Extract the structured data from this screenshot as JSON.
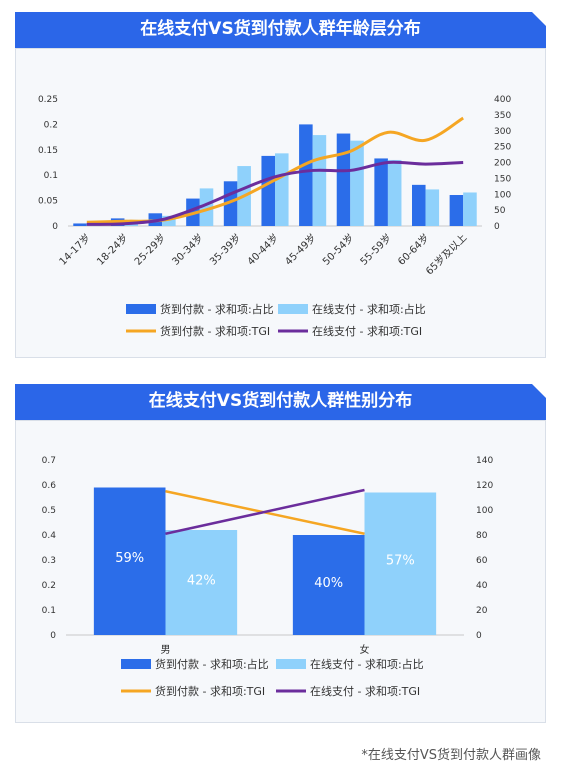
{
  "colors": {
    "banner_blue": "#2b66e8",
    "cod_bar": "#2b6de9",
    "online_bar": "#8fd1fb",
    "cod_line": "#f5a623",
    "online_line": "#6b2d9c"
  },
  "age_chart": {
    "title": "在线支付VS货到付款人群年龄层分布",
    "chart_data": {
      "type": "bar",
      "categories": [
        "14-17岁",
        "18-24岁",
        "25-29岁",
        "30-34岁",
        "35-39岁",
        "40-44岁",
        "45-49岁",
        "50-54岁",
        "55-59岁",
        "60-64岁",
        "65岁及以上"
      ],
      "series": [
        {
          "name": "货到付款 - 求和项:占比",
          "type": "bar",
          "axis": "left",
          "values": [
            0.005,
            0.015,
            0.025,
            0.054,
            0.088,
            0.138,
            0.2,
            0.182,
            0.133,
            0.081,
            0.061
          ]
        },
        {
          "name": "在线支付 - 求和项:占比",
          "type": "bar",
          "axis": "left",
          "values": [
            0.004,
            0.012,
            0.02,
            0.074,
            0.118,
            0.143,
            0.179,
            0.168,
            0.13,
            0.072,
            0.066
          ]
        },
        {
          "name": "货到付款 - 求和项:TGI",
          "type": "line",
          "axis": "right",
          "values": [
            12,
            15,
            18,
            45,
            85,
            145,
            205,
            235,
            295,
            270,
            340
          ]
        },
        {
          "name": "在线支付 - 求和项:TGI",
          "type": "line",
          "axis": "right",
          "values": [
            5,
            7,
            20,
            60,
            110,
            155,
            175,
            175,
            200,
            195,
            200
          ]
        }
      ],
      "y_left_ticks": [
        "0",
        "0.05",
        "0.1",
        "0.15",
        "0.2",
        "0.25"
      ],
      "y_left_range": [
        0,
        0.25
      ],
      "y_right_ticks": [
        "0",
        "50",
        "100",
        "150",
        "200",
        "250",
        "300",
        "350",
        "400"
      ],
      "y_right_range": [
        0,
        400
      ],
      "legend": "bottom"
    }
  },
  "gender_chart": {
    "title": "在线支付VS货到付款人群性别分布",
    "chart_data": {
      "type": "bar",
      "categories": [
        "男",
        "女"
      ],
      "series": [
        {
          "name": "货到付款 - 求和项:占比",
          "type": "bar",
          "axis": "left",
          "values": [
            0.59,
            0.4
          ],
          "labels": [
            "59%",
            "40%"
          ]
        },
        {
          "name": "在线支付 - 求和项:占比",
          "type": "bar",
          "axis": "left",
          "values": [
            0.42,
            0.57
          ],
          "labels": [
            "42%",
            "57%"
          ]
        },
        {
          "name": "货到付款 - 求和项:TGI",
          "type": "line",
          "axis": "right",
          "values": [
            115,
            81
          ]
        },
        {
          "name": "在线支付 - 求和项:TGI",
          "type": "line",
          "axis": "right",
          "values": [
            81,
            116
          ]
        }
      ],
      "y_left_ticks": [
        "0",
        "0.1",
        "0.2",
        "0.3",
        "0.4",
        "0.5",
        "0.6",
        "0.7"
      ],
      "y_left_range": [
        0,
        0.7
      ],
      "y_right_ticks": [
        "0",
        "20",
        "40",
        "60",
        "80",
        "100",
        "120",
        "140"
      ],
      "y_right_range": [
        0,
        140
      ],
      "legend": "bottom"
    }
  },
  "footnote": "*在线支付VS货到付款人群画像"
}
